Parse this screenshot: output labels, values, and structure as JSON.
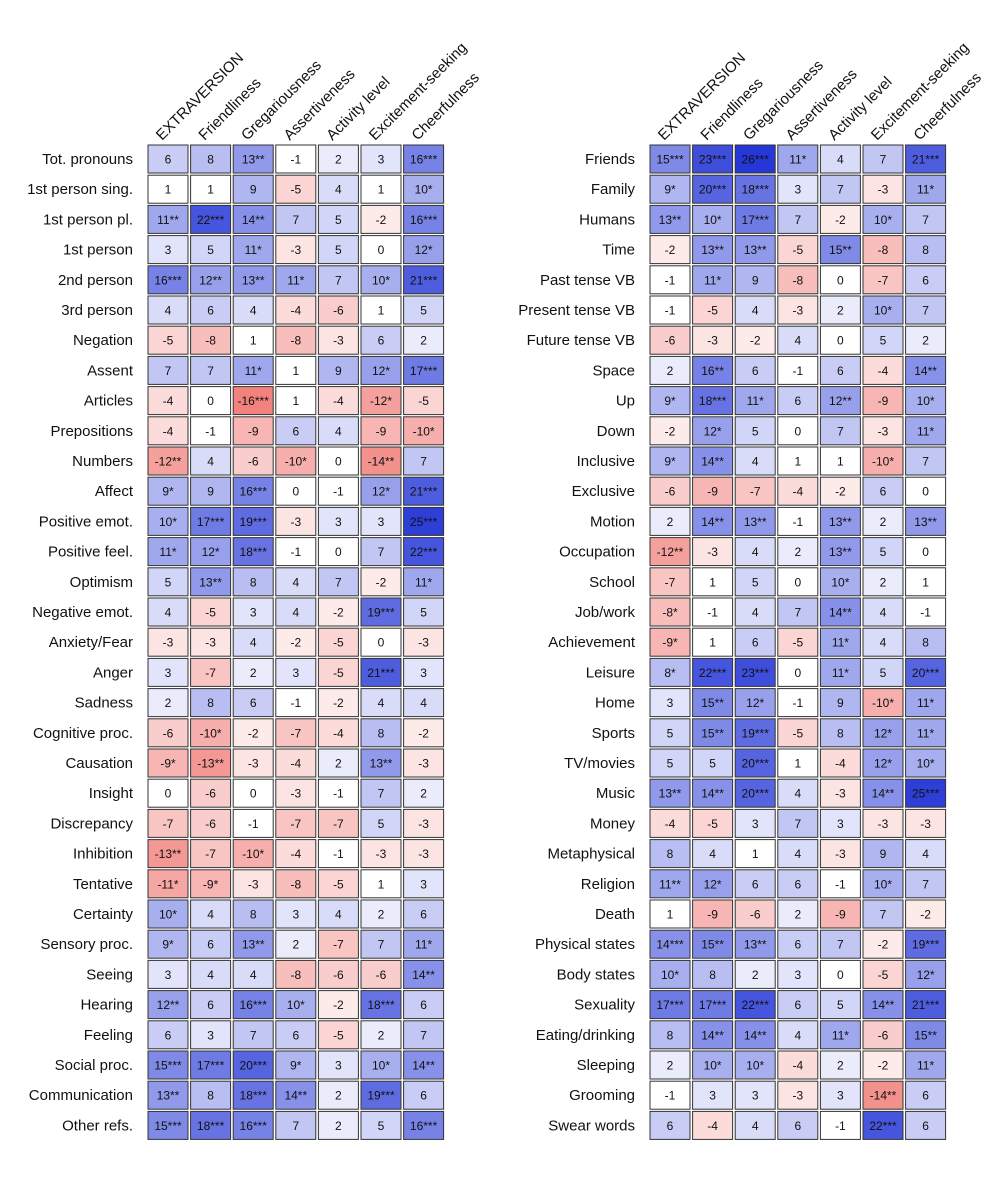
{
  "chart_data": [
    {
      "type": "heatmap",
      "title": "",
      "value_scale": [
        -26,
        26
      ],
      "colors": {
        "negative": "#e8322b",
        "neutral": "#ffffff",
        "positive": "#2133d6",
        "cell_border": "#333333",
        "text": "#111111"
      },
      "columns": [
        "EXTRAVERSION",
        "Friendliness",
        "Gregariousness",
        "Assertiveness",
        "Activity level",
        "Excitement-seeking",
        "Cheerfulness"
      ],
      "rows": [
        "Tot. pronouns",
        "1st person sing.",
        "1st person pl.",
        "1st person",
        "2nd person",
        "3rd person",
        "Negation",
        "Assent",
        "Articles",
        "Prepositions",
        "Numbers",
        "Affect",
        "Positive emot.",
        "Positive feel.",
        "Optimism",
        "Negative emot.",
        "Anxiety/Fear",
        "Anger",
        "Sadness",
        "Cognitive proc.",
        "Causation",
        "Insight",
        "Discrepancy",
        "Inhibition",
        "Tentative",
        "Certainty",
        "Sensory proc.",
        "Seeing",
        "Hearing",
        "Feeling",
        "Social proc.",
        "Communication",
        "Other refs."
      ],
      "cells": [
        [
          "6",
          "8",
          "13**",
          "-1",
          "2",
          "3",
          "16***"
        ],
        [
          "1",
          "1",
          "9",
          "-5",
          "4",
          "1",
          "10*"
        ],
        [
          "11**",
          "22***",
          "14**",
          "7",
          "5",
          "-2",
          "16***"
        ],
        [
          "3",
          "5",
          "11*",
          "-3",
          "5",
          "0",
          "12*"
        ],
        [
          "16***",
          "12**",
          "13**",
          "11*",
          "7",
          "10*",
          "21***"
        ],
        [
          "4",
          "6",
          "4",
          "-4",
          "-6",
          "1",
          "5"
        ],
        [
          "-5",
          "-8",
          "1",
          "-8",
          "-3",
          "6",
          "2"
        ],
        [
          "7",
          "7",
          "11*",
          "1",
          "9",
          "12*",
          "17***"
        ],
        [
          "-4",
          "0",
          "-16***",
          "1",
          "-4",
          "-12*",
          "-5"
        ],
        [
          "-4",
          "-1",
          "-9",
          "6",
          "4",
          "-9",
          "-10*"
        ],
        [
          "-12**",
          "4",
          "-6",
          "-10*",
          "0",
          "-14**",
          "7"
        ],
        [
          "9*",
          "9",
          "16***",
          "0",
          "-1",
          "12*",
          "21***"
        ],
        [
          "10*",
          "17***",
          "19***",
          "-3",
          "3",
          "3",
          "25***"
        ],
        [
          "11*",
          "12*",
          "18***",
          "-1",
          "0",
          "7",
          "22***"
        ],
        [
          "5",
          "13**",
          "8",
          "4",
          "7",
          "-2",
          "11*"
        ],
        [
          "4",
          "-5",
          "3",
          "4",
          "-2",
          "19***",
          "5"
        ],
        [
          "-3",
          "-3",
          "4",
          "-2",
          "-5",
          "0",
          "-3"
        ],
        [
          "3",
          "-7",
          "2",
          "3",
          "-5",
          "21***",
          "3"
        ],
        [
          "2",
          "8",
          "6",
          "-1",
          "-2",
          "4",
          "4"
        ],
        [
          "-6",
          "-10*",
          "-2",
          "-7",
          "-4",
          "8",
          "-2"
        ],
        [
          "-9*",
          "-13**",
          "-3",
          "-4",
          "2",
          "13**",
          "-3"
        ],
        [
          "0",
          "-6",
          "0",
          "-3",
          "-1",
          "7",
          "2"
        ],
        [
          "-7",
          "-6",
          "-1",
          "-7",
          "-7",
          "5",
          "-3"
        ],
        [
          "-13**",
          "-7",
          "-10*",
          "-4",
          "-1",
          "-3",
          "-3"
        ],
        [
          "-11*",
          "-9*",
          "-3",
          "-8",
          "-5",
          "1",
          "3"
        ],
        [
          "10*",
          "4",
          "8",
          "3",
          "4",
          "2",
          "6"
        ],
        [
          "9*",
          "6",
          "13**",
          "2",
          "-7",
          "7",
          "11*"
        ],
        [
          "3",
          "4",
          "4",
          "-8",
          "-6",
          "-6",
          "14**"
        ],
        [
          "12**",
          "6",
          "16***",
          "10*",
          "-2",
          "18***",
          "6"
        ],
        [
          "6",
          "3",
          "7",
          "6",
          "-5",
          "2",
          "7"
        ],
        [
          "15***",
          "17***",
          "20***",
          "9*",
          "3",
          "10*",
          "14**"
        ],
        [
          "13**",
          "8",
          "18***",
          "14**",
          "2",
          "19***",
          "6"
        ],
        [
          "15***",
          "18***",
          "16***",
          "7",
          "2",
          "5",
          "16***"
        ]
      ]
    },
    {
      "type": "heatmap",
      "title": "",
      "value_scale": [
        -26,
        26
      ],
      "colors": {
        "negative": "#e8322b",
        "neutral": "#ffffff",
        "positive": "#2133d6",
        "cell_border": "#333333",
        "text": "#111111"
      },
      "columns": [
        "EXTRAVERSION",
        "Friendliness",
        "Gregariousness",
        "Assertiveness",
        "Activity level",
        "Excitement-seeking",
        "Cheerfulness"
      ],
      "rows": [
        "Friends",
        "Family",
        "Humans",
        "Time",
        "Past tense VB",
        "Present tense VB",
        "Future tense VB",
        "Space",
        "Up",
        "Down",
        "Inclusive",
        "Exclusive",
        "Motion",
        "Occupation",
        "School",
        "Job/work",
        "Achievement",
        "Leisure",
        "Home",
        "Sports",
        "TV/movies",
        "Music",
        "Money",
        "Metaphysical",
        "Religion",
        "Death",
        "Physical states",
        "Body states",
        "Sexuality",
        "Eating/drinking",
        "Sleeping",
        "Grooming",
        "Swear words"
      ],
      "cells": [
        [
          "15***",
          "23***",
          "26***",
          "11*",
          "4",
          "7",
          "21***"
        ],
        [
          "9*",
          "20***",
          "18***",
          "3",
          "7",
          "-3",
          "11*"
        ],
        [
          "13**",
          "10*",
          "17***",
          "7",
          "-2",
          "10*",
          "7"
        ],
        [
          "-2",
          "13**",
          "13**",
          "-5",
          "15**",
          "-8",
          "8"
        ],
        [
          "-1",
          "11*",
          "9",
          "-8",
          "0",
          "-7",
          "6"
        ],
        [
          "-1",
          "-5",
          "4",
          "-3",
          "2",
          "10*",
          "7"
        ],
        [
          "-6",
          "-3",
          "-2",
          "4",
          "0",
          "5",
          "2"
        ],
        [
          "2",
          "16**",
          "6",
          "-1",
          "6",
          "-4",
          "14**"
        ],
        [
          "9*",
          "18***",
          "11*",
          "6",
          "12**",
          "-9",
          "10*"
        ],
        [
          "-2",
          "12*",
          "5",
          "0",
          "7",
          "-3",
          "11*"
        ],
        [
          "9*",
          "14**",
          "4",
          "1",
          "1",
          "-10*",
          "7"
        ],
        [
          "-6",
          "-9",
          "-7",
          "-4",
          "-2",
          "6",
          "0"
        ],
        [
          "2",
          "14**",
          "13**",
          "-1",
          "13**",
          "2",
          "13**"
        ],
        [
          "-12**",
          "-3",
          "4",
          "2",
          "13**",
          "5",
          "0"
        ],
        [
          "-7",
          "1",
          "5",
          "0",
          "10*",
          "2",
          "1"
        ],
        [
          "-8*",
          "-1",
          "4",
          "7",
          "14**",
          "4",
          "-1"
        ],
        [
          "-9*",
          "1",
          "6",
          "-5",
          "11*",
          "4",
          "8"
        ],
        [
          "8*",
          "22***",
          "23***",
          "0",
          "11*",
          "5",
          "20***"
        ],
        [
          "3",
          "15**",
          "12*",
          "-1",
          "9",
          "-10*",
          "11*"
        ],
        [
          "5",
          "15**",
          "19***",
          "-5",
          "8",
          "12*",
          "11*"
        ],
        [
          "5",
          "5",
          "20***",
          "1",
          "-4",
          "12*",
          "10*"
        ],
        [
          "13**",
          "14**",
          "20***",
          "4",
          "-3",
          "14**",
          "25***"
        ],
        [
          "-4",
          "-5",
          "3",
          "7",
          "3",
          "-3",
          "-3"
        ],
        [
          "8",
          "4",
          "1",
          "4",
          "-3",
          "9",
          "4"
        ],
        [
          "11**",
          "12*",
          "6",
          "6",
          "-1",
          "10*",
          "7"
        ],
        [
          "1",
          "-9",
          "-6",
          "2",
          "-9",
          "7",
          "-2"
        ],
        [
          "14***",
          "15**",
          "13**",
          "6",
          "7",
          "-2",
          "19***"
        ],
        [
          "10*",
          "8",
          "2",
          "3",
          "0",
          "-5",
          "12*"
        ],
        [
          "17***",
          "17***",
          "22***",
          "6",
          "5",
          "14**",
          "21***"
        ],
        [
          "8",
          "14**",
          "14**",
          "4",
          "11*",
          "-6",
          "15**"
        ],
        [
          "2",
          "10*",
          "10*",
          "-4",
          "2",
          "-2",
          "11*"
        ],
        [
          "-1",
          "3",
          "3",
          "-3",
          "3",
          "-14**",
          "6"
        ],
        [
          "6",
          "-4",
          "4",
          "6",
          "-1",
          "22***",
          "6"
        ]
      ]
    }
  ]
}
